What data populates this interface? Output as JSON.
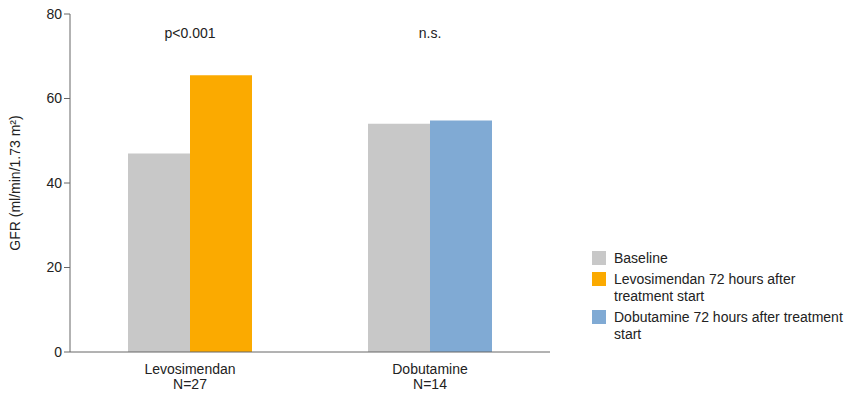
{
  "chart_data": {
    "type": "bar",
    "categories": [
      "Levosimendan\nN=27",
      "Dobutamine\nN=14"
    ],
    "series": [
      {
        "name": "Baseline",
        "color": "#c8c8c8",
        "values": [
          47,
          54
        ]
      },
      {
        "name": "Levosimendan 72 hours after treatment start",
        "color": "#fbaa00",
        "values": [
          65.5,
          null
        ]
      },
      {
        "name": "Dobutamine 72 hours after treatment start",
        "color": "#80aad4",
        "values": [
          null,
          54.8
        ]
      }
    ],
    "annotations": [
      "p<0.001",
      "n.s."
    ],
    "y_label": "GFR (ml/min/1.73 m²)",
    "ylim": [
      0,
      80
    ],
    "yticks": [
      0,
      20,
      40,
      60,
      80
    ],
    "grid": false,
    "legend": "right"
  }
}
